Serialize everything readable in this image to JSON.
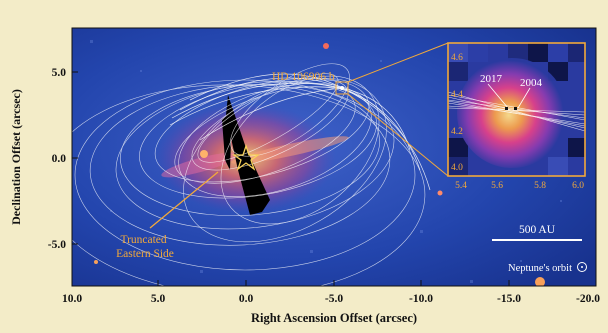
{
  "axes": {
    "xlabel": "Right Ascension Offset (arcsec)",
    "ylabel": "Declination Offset (arcsec)",
    "x_ticks": [
      "10.0",
      "5.0",
      "0.0",
      "-5.0",
      "-10.0",
      "-15.0",
      "-20.0"
    ],
    "y_ticks": [
      "5.0",
      "0.0",
      "-5.0"
    ]
  },
  "annotations": {
    "planet": "HD 106906 b",
    "eastern_side": "Truncated\nEastern Side",
    "scale_bar": "500 AU",
    "neptune": "Neptune's orbit"
  },
  "inset": {
    "x_ticks": [
      "5.4",
      "5.6",
      "5.8",
      "6.0"
    ],
    "y_ticks": [
      "4.6",
      "4.4",
      "4.2",
      "4.0"
    ],
    "epoch_a": "2017",
    "epoch_b": "2004"
  },
  "colors": {
    "annotation": "#f2a93b",
    "background": "#1c3aa0",
    "frame": "#f3ecc8"
  }
}
